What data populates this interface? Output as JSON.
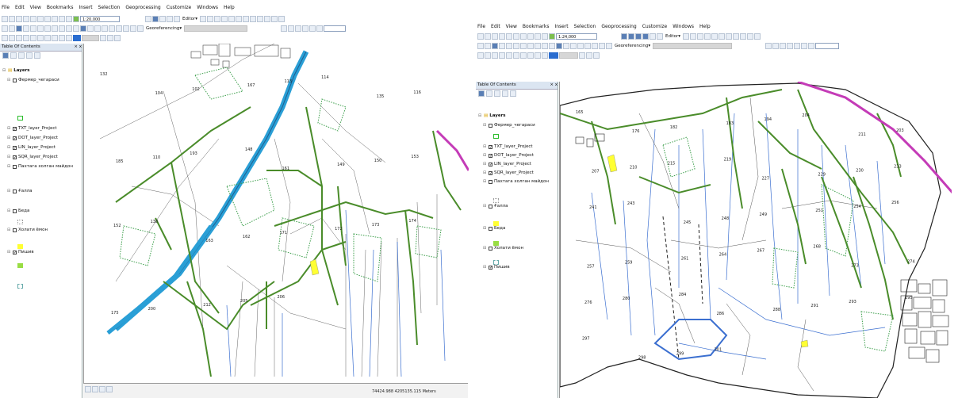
{
  "menu": [
    "File",
    "Edit",
    "View",
    "Bookmarks",
    "Insert",
    "Selection",
    "Geoprocessing",
    "Customize",
    "Windows",
    "Help"
  ],
  "left": {
    "scale": "1:20,000",
    "editor_label": "Editor▾",
    "georef_label": "Georeferencing▾",
    "toc_title": "Table Of Contents",
    "toc_close": "⨯ x",
    "status_coords": "74424.988  4205135.115 Meters",
    "layers": [
      {
        "label": "Layers",
        "checked": null,
        "bold": true
      },
      {
        "label": "Фермер_чегараси",
        "checked": false
      },
      {
        "label": "TXT_layer_Project",
        "checked": true
      },
      {
        "label": "DOT_layer_Project",
        "checked": true
      },
      {
        "label": "LIN_layer_Project",
        "checked": true
      },
      {
        "label": "SQR_layer_Project",
        "checked": true
      },
      {
        "label": "Пахтага холган майдон",
        "checked": false
      },
      {
        "label": "Ғалла",
        "checked": false
      },
      {
        "label": "Беда",
        "checked": false
      },
      {
        "label": "Холати ёмон",
        "checked": false
      },
      {
        "label": "Пишив",
        "checked": true
      }
    ],
    "map_numbers": [
      "132",
      "104",
      "102",
      "167",
      "113",
      "114",
      "135",
      "116",
      "185",
      "110",
      "193",
      "148",
      "161",
      "149",
      "150",
      "153",
      "152",
      "138",
      "163",
      "162",
      "171",
      "172",
      "173",
      "174",
      "175",
      "200",
      "212",
      "205",
      "206"
    ]
  },
  "right": {
    "scale": "1:24,000",
    "editor_label": "Editor▾",
    "georef_label": "Georeferencing▾",
    "toc_title": "Table Of Contents",
    "toc_close": "⨯ x",
    "layers": [
      {
        "label": "Layers",
        "checked": null,
        "bold": true
      },
      {
        "label": "Фермер_чегараси",
        "checked": false
      },
      {
        "label": "TXT_layer_Project",
        "checked": true
      },
      {
        "label": "DOT_layer_Project",
        "checked": true
      },
      {
        "label": "LIN_layer_Project",
        "checked": true
      },
      {
        "label": "SQR_layer_Project",
        "checked": true
      },
      {
        "label": "Пахтага холган майдон",
        "checked": false
      },
      {
        "label": "Ғалла",
        "checked": false
      },
      {
        "label": "Беда",
        "checked": false
      },
      {
        "label": "Холати ёмон",
        "checked": false
      },
      {
        "label": "Пишив",
        "checked": true
      }
    ],
    "map_numbers": [
      "165",
      "176",
      "182",
      "183",
      "194",
      "204",
      "211",
      "203",
      "207",
      "210",
      "215",
      "219",
      "227",
      "229",
      "230",
      "233",
      "241",
      "243",
      "245",
      "248",
      "249",
      "251",
      "254",
      "256",
      "257",
      "259",
      "261",
      "264",
      "267",
      "268",
      "273",
      "274",
      "276",
      "280",
      "284",
      "286",
      "288",
      "291",
      "293",
      "295",
      "297",
      "298",
      "299",
      "301"
    ]
  },
  "colors": {
    "boundary": "#c43bb7",
    "road": "#2a9fd6",
    "green": "#4a8c2a",
    "line": "#3b6fd0",
    "dots": "#3b9e4a"
  }
}
